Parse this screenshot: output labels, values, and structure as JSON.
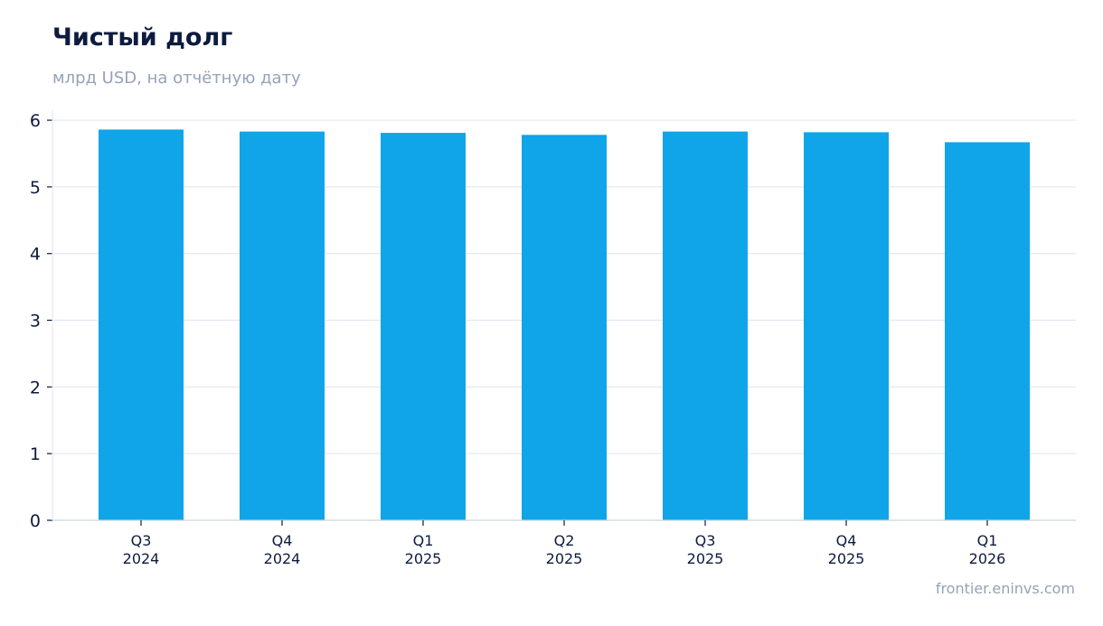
{
  "header": {
    "title": "Чистый долг",
    "subtitle": "млрд USD, на отчётную дату"
  },
  "footer": {
    "source": "frontier.eninvs.com"
  },
  "colors": {
    "bar": "#10a5e8",
    "grid": "#e2e8f0",
    "axis": "#cbd5e1",
    "tick_text": "#0d1b3e",
    "title": "#0d1b3e",
    "muted": "#94a3b8"
  },
  "chart_data": {
    "type": "bar",
    "title": "Чистый долг",
    "subtitle": "млрд USD, на отчётную дату",
    "xlabel": "",
    "ylabel": "",
    "categories": [
      [
        "Q3",
        "2024"
      ],
      [
        "Q4",
        "2024"
      ],
      [
        "Q1",
        "2025"
      ],
      [
        "Q2",
        "2025"
      ],
      [
        "Q3",
        "2025"
      ],
      [
        "Q4",
        "2025"
      ],
      [
        "Q1",
        "2026"
      ]
    ],
    "values": [
      5.86,
      5.83,
      5.81,
      5.78,
      5.83,
      5.82,
      5.67
    ],
    "ylim": [
      0,
      6.15
    ],
    "yticks": [
      0,
      1,
      2,
      3,
      4,
      5,
      6
    ],
    "grid": true,
    "legend": "none"
  }
}
